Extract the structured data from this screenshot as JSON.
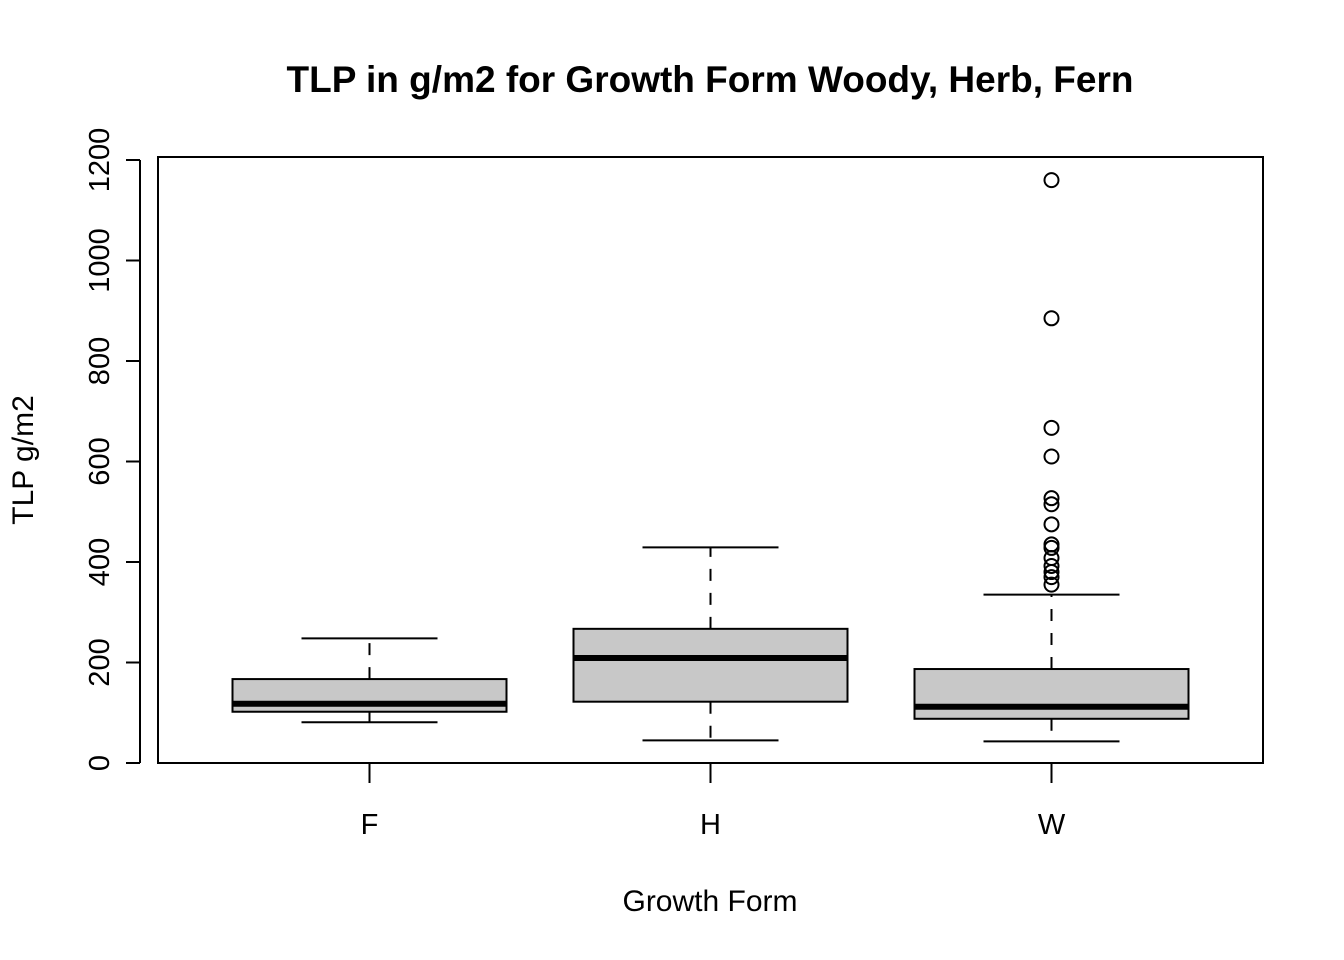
{
  "chart_data": {
    "type": "box",
    "title": "TLP in g/m2 for Growth Form Woody, Herb, Fern",
    "xlabel": "Growth Form",
    "ylabel": "TLP g/m2",
    "ylim": [
      0,
      1200
    ],
    "yticks": [
      0,
      200,
      400,
      600,
      800,
      1000,
      1200
    ],
    "categories": [
      "F",
      "H",
      "W"
    ],
    "box_fill": "#c8c8c8",
    "boxes": [
      {
        "category": "F",
        "whisker_low": 81,
        "q1": 102,
        "median": 118,
        "q3": 167,
        "whisker_high": 248,
        "outliers": []
      },
      {
        "category": "H",
        "whisker_low": 45,
        "q1": 122,
        "median": 209,
        "q3": 267,
        "whisker_high": 429,
        "outliers": []
      },
      {
        "category": "W",
        "whisker_low": 43,
        "q1": 88,
        "median": 112,
        "q3": 187,
        "whisker_high": 335,
        "outliers": [
          355,
          370,
          380,
          392,
          408,
          428,
          435,
          475,
          515,
          527,
          610,
          667,
          885,
          1160
        ]
      }
    ]
  }
}
